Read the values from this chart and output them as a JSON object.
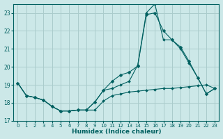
{
  "xlabel": "Humidex (Indice chaleur)",
  "bg_color": "#cce8e8",
  "grid_color": "#aacccc",
  "line_color": "#006060",
  "xlim": [
    -0.5,
    23.5
  ],
  "ylim": [
    17,
    23.5
  ],
  "yticks": [
    17,
    18,
    19,
    20,
    21,
    22,
    23
  ],
  "xticks": [
    0,
    1,
    2,
    3,
    4,
    5,
    6,
    7,
    8,
    9,
    10,
    11,
    12,
    13,
    14,
    15,
    16,
    17,
    18,
    19,
    20,
    21,
    22,
    23
  ],
  "series1_x": [
    0,
    1,
    2,
    3,
    4,
    5,
    6,
    7,
    8,
    9,
    10,
    11,
    12,
    13,
    14,
    15,
    16,
    17,
    18,
    19,
    20,
    21,
    22,
    23
  ],
  "series1_y": [
    19.1,
    18.4,
    18.3,
    18.15,
    17.8,
    17.55,
    17.55,
    17.6,
    17.6,
    17.6,
    18.1,
    18.4,
    18.5,
    18.6,
    18.65,
    18.7,
    18.75,
    18.8,
    18.8,
    18.85,
    18.9,
    18.95,
    19.0,
    18.8
  ],
  "series2_x": [
    0,
    1,
    2,
    3,
    4,
    5,
    6,
    7,
    8,
    9,
    10,
    11,
    12,
    13,
    14,
    15,
    16,
    17,
    18,
    19,
    20,
    21,
    22,
    23
  ],
  "series2_y": [
    19.1,
    18.4,
    18.3,
    18.15,
    17.8,
    17.55,
    17.55,
    17.6,
    17.6,
    18.05,
    18.7,
    19.2,
    19.55,
    19.7,
    20.05,
    22.9,
    23.0,
    22.0,
    21.5,
    21.1,
    20.3,
    19.4,
    18.5,
    18.8
  ],
  "series3_x": [
    0,
    1,
    2,
    3,
    4,
    5,
    6,
    7,
    8,
    9,
    10,
    11,
    12,
    13,
    14,
    15,
    16,
    17,
    18,
    19,
    20,
    21,
    22,
    23
  ],
  "series3_y": [
    19.1,
    18.4,
    18.3,
    18.15,
    17.8,
    17.55,
    17.55,
    17.6,
    17.6,
    18.05,
    18.7,
    18.8,
    19.0,
    19.2,
    20.1,
    23.0,
    23.5,
    21.5,
    21.5,
    21.0,
    20.2,
    19.4,
    18.5,
    18.8
  ]
}
